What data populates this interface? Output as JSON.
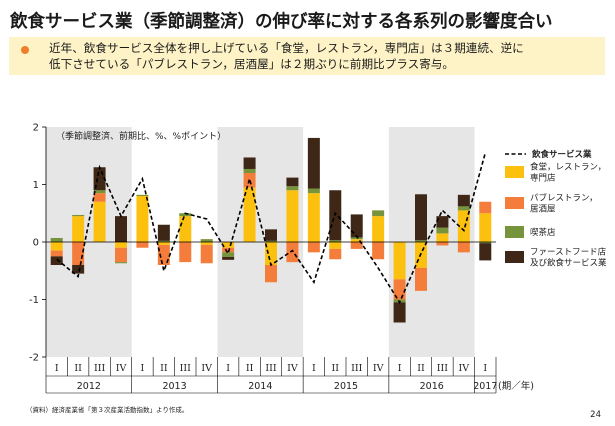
{
  "title": "飲食サービス業（季節調整済）の伸び率に対する各系列の影響度合い",
  "banner": {
    "line1": "近年、飲食サービス全体を押し上げている「食堂，レストラン，専門店」は３期連続、逆に",
    "line2": "低下させている「パブレストラン，居酒屋」は２期ぶりに前期比プラス寄与。"
  },
  "footnote": "（資料）経済産業省「第３次産業活動指数」より作成。",
  "page_number": "24",
  "chart_data": {
    "type": "bar",
    "stacked": true,
    "note": "（季節調整済、前期比、%、%ポイント）",
    "ylim": [
      -2,
      2
    ],
    "yticks": [
      "-2",
      "-1",
      "0",
      "1",
      "2"
    ],
    "xlabel": "(期／年)",
    "quarter_labels": [
      "I",
      "II",
      "III",
      "IV",
      "I",
      "II",
      "III",
      "IV",
      "I",
      "II",
      "III",
      "IV",
      "I",
      "II",
      "III",
      "IV",
      "I",
      "II",
      "III",
      "IV",
      "I"
    ],
    "years": [
      "2012",
      "2013",
      "2014",
      "2015",
      "2016",
      "2017"
    ],
    "colors": {
      "restaurant": "#fcc00f",
      "pub": "#f57d3b",
      "cafe": "#77933c",
      "fastfood": "#3e2716",
      "shade": "#e6e6e6",
      "line": "#000000"
    },
    "series": [
      {
        "name": "食堂，レストラン，専門店",
        "key": "restaurant",
        "values": [
          -0.15,
          0.45,
          0.7,
          -0.1,
          0.8,
          -0.05,
          0.45,
          -0.05,
          -0.1,
          0.95,
          -0.4,
          0.9,
          0.85,
          -0.12,
          0.05,
          0.45,
          -0.65,
          -0.45,
          0.15,
          0.55,
          0.5
        ]
      },
      {
        "name": "パブレストラン，居酒屋",
        "key": "pub",
        "values": [
          -0.1,
          -0.4,
          0.15,
          -0.25,
          -0.1,
          -0.35,
          -0.35,
          -0.32,
          -0.08,
          0.25,
          -0.3,
          -0.35,
          -0.18,
          -0.18,
          -0.12,
          -0.3,
          -0.35,
          -0.4,
          -0.06,
          -0.18,
          0.2
        ]
      },
      {
        "name": "喫茶店",
        "key": "cafe",
        "values": [
          0.07,
          0.02,
          0.05,
          -0.02,
          0.02,
          0.02,
          0.05,
          0.05,
          -0.08,
          0.07,
          0.02,
          0.07,
          0.08,
          0.03,
          0.03,
          0.1,
          -0.05,
          0.03,
          0.1,
          0.07,
          -0.02
        ]
      },
      {
        "name": "ファーストフード店\n及び飲食サービス業",
        "key": "fastfood",
        "values": [
          -0.15,
          -0.15,
          0.4,
          0.45,
          0.0,
          0.28,
          0.0,
          0.0,
          -0.05,
          0.2,
          0.2,
          0.15,
          0.88,
          0.87,
          0.4,
          0.0,
          -0.35,
          0.8,
          0.2,
          0.2,
          -0.3
        ]
      }
    ],
    "line": {
      "name": "飲食サービス業",
      "values": [
        -0.3,
        -0.6,
        1.3,
        0.45,
        1.1,
        -0.5,
        0.5,
        0.4,
        -0.2,
        1.1,
        -0.4,
        -0.15,
        -0.7,
        0.5,
        0.1,
        -0.45,
        -1.05,
        -0.2,
        0.55,
        0.2,
        1.55
      ]
    }
  }
}
